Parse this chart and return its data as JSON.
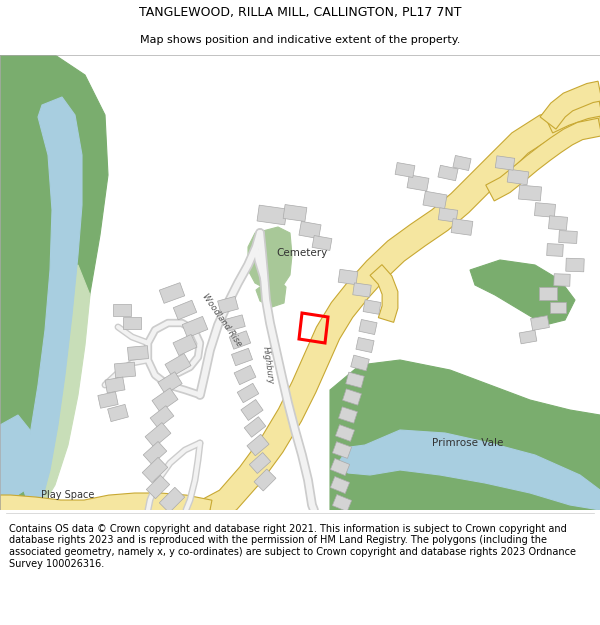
{
  "title": "TANGLEWOOD, RILLA MILL, CALLINGTON, PL17 7NT",
  "subtitle": "Map shows position and indicative extent of the property.",
  "footer": "Contains OS data © Crown copyright and database right 2021. This information is subject to Crown copyright and database rights 2023 and is reproduced with the permission of HM Land Registry. The polygons (including the associated geometry, namely x, y co-ordinates) are subject to Crown copyright and database rights 2023 Ordnance Survey 100026316.",
  "GREEN_DARK": "#7aad6e",
  "GREEN_LIGHT": "#c8deb8",
  "BLUE": "#a8cee0",
  "ROAD_MAIN_FILL": "#f5e6a0",
  "ROAD_MAIN_EDGE": "#c8a832",
  "ROAD_MINOR_BG": "#d8d8d8",
  "ROAD_MINOR_FG": "#f0f0f0",
  "BUILDING": "#d4d4d4",
  "BUILDING_EDGE": "#aaaaaa",
  "CEMETERY_GREEN": "#a8c898",
  "RED": "#dd0000",
  "map_bg": "#ffffff",
  "title_fs": 9,
  "subtitle_fs": 8,
  "footer_fs": 7
}
